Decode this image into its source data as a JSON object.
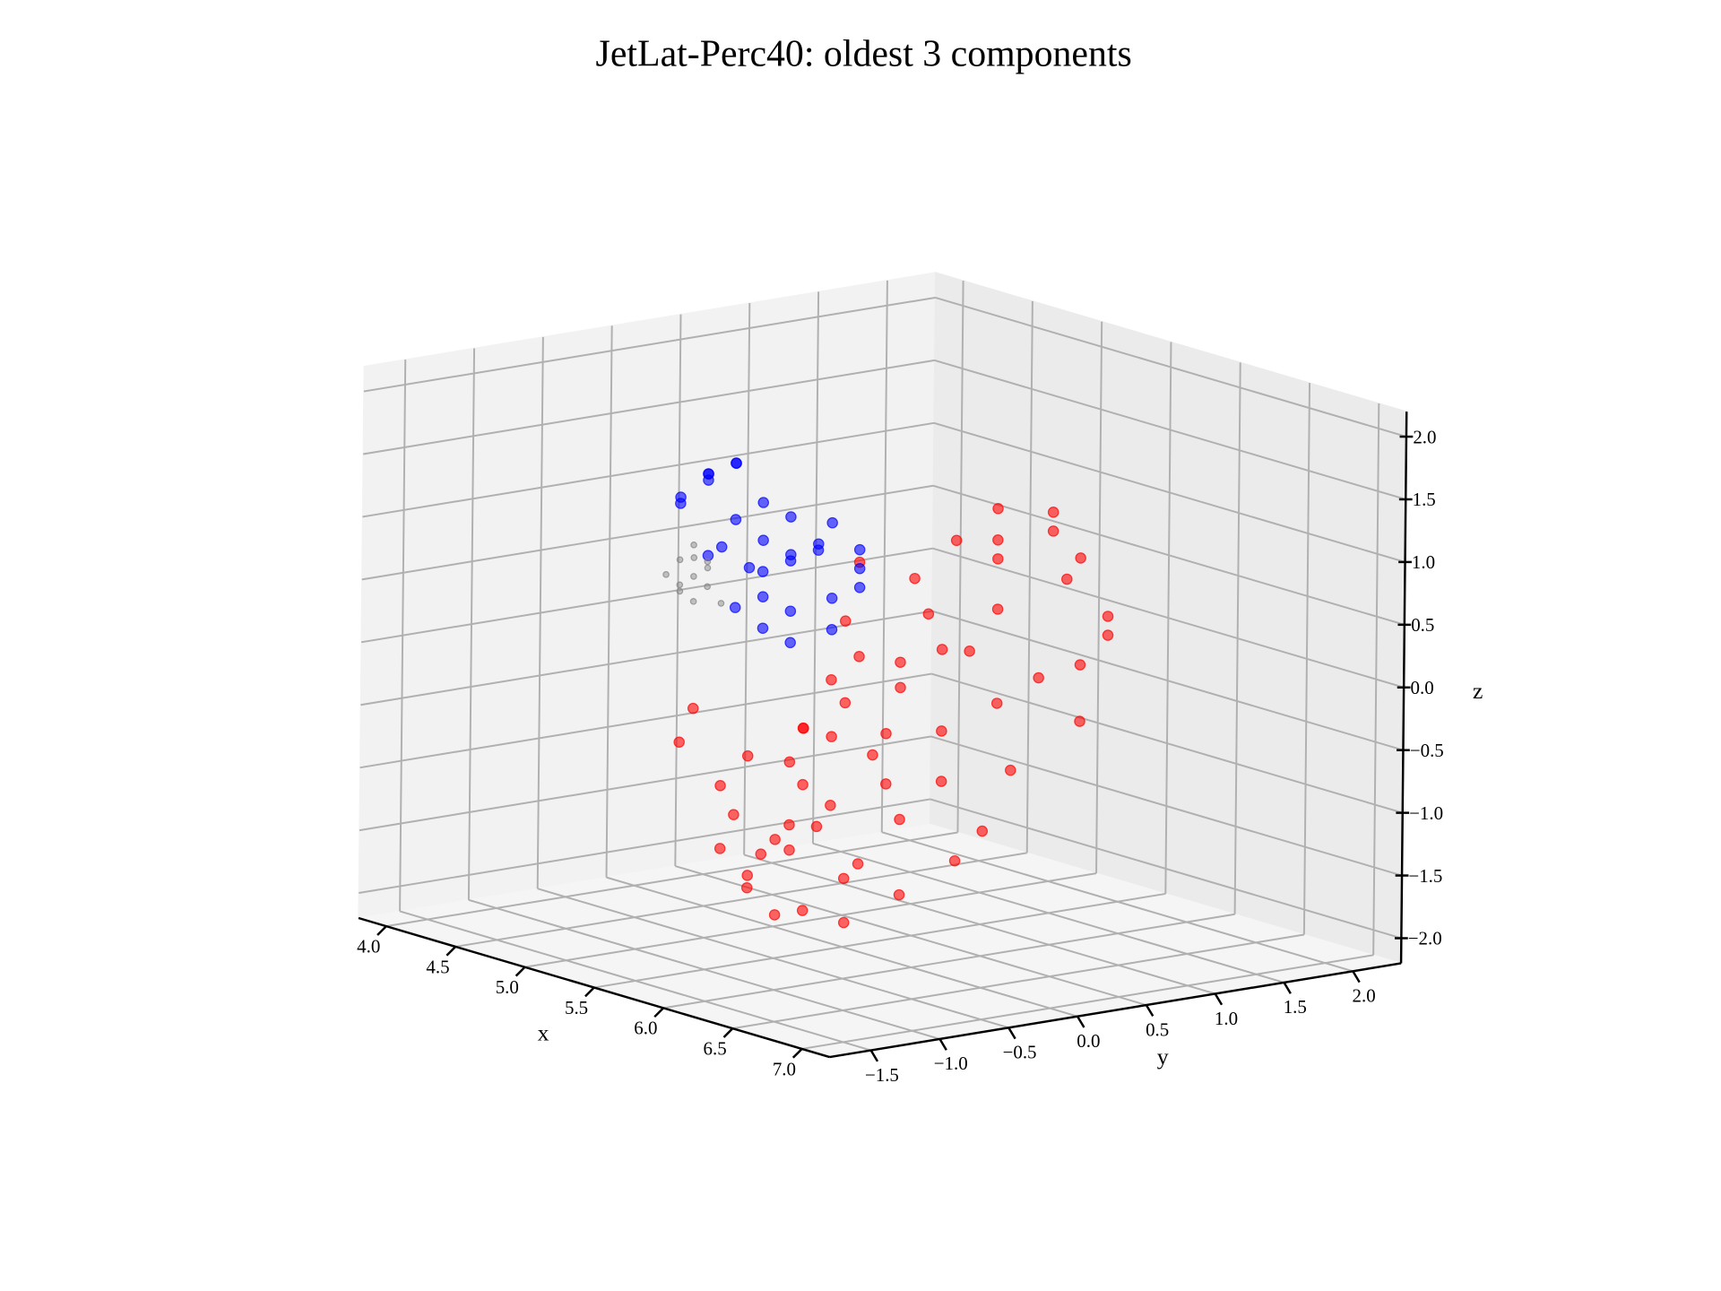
{
  "chart_data": {
    "type": "scatter3d",
    "title": "JetLat-Perc40: oldest 3 components",
    "x_label": "x",
    "y_label": "y",
    "z_label": "z",
    "xlim": [
      3.8,
      7.2
    ],
    "ylim": [
      -1.8,
      2.35
    ],
    "zlim": [
      -2.2,
      2.2
    ],
    "xticks": [
      {
        "value": 4,
        "label": "4.0"
      },
      {
        "value": 4.5,
        "label": "4.5"
      },
      {
        "value": 5,
        "label": "5.0"
      },
      {
        "value": 5.5,
        "label": "5.5"
      },
      {
        "value": 6,
        "label": "6.0"
      },
      {
        "value": 6.5,
        "label": "6.5"
      },
      {
        "value": 7,
        "label": "7.0"
      }
    ],
    "yticks": [
      {
        "value": -1.5,
        "label": "−1.5"
      },
      {
        "value": -1,
        "label": "−1.0"
      },
      {
        "value": -0.5,
        "label": "−0.5"
      },
      {
        "value": 0,
        "label": "0.0"
      },
      {
        "value": 0.5,
        "label": "0.5"
      },
      {
        "value": 1,
        "label": "1.0"
      },
      {
        "value": 1.5,
        "label": "1.5"
      },
      {
        "value": 2,
        "label": "2.0"
      }
    ],
    "zticks": [
      {
        "value": -2,
        "label": "−2.0"
      },
      {
        "value": -1.5,
        "label": "−1.5"
      },
      {
        "value": -1,
        "label": "−1.0"
      },
      {
        "value": -0.5,
        "label": "−0.5"
      },
      {
        "value": 0,
        "label": "0.0"
      },
      {
        "value": 0.5,
        "label": "0.5"
      },
      {
        "value": 1,
        "label": "1.0"
      },
      {
        "value": 1.5,
        "label": "1.5"
      },
      {
        "value": 2,
        "label": "2.0"
      }
    ],
    "grid": true,
    "series": [
      {
        "color": "#ff0000",
        "x": [
          6.0,
          6.2,
          5.8,
          6.4,
          5.9,
          6.1,
          6.5,
          5.7,
          6.3,
          6.0,
          5.6,
          6.6,
          6.2,
          5.9,
          6.4,
          6.1,
          5.8,
          6.4,
          5.5,
          6.0,
          6.3,
          5.9,
          6.1,
          6.2,
          6.0,
          5.8,
          6.3,
          6.1,
          6.0,
          6.4,
          6.2,
          6.5,
          6.6,
          6.3,
          5.7,
          5.6,
          5.9,
          6.4,
          6.5,
          6.7,
          6.8,
          6.6,
          5.8,
          6.2,
          6.0,
          5.7,
          6.1,
          6.0,
          6.3,
          6.1,
          5.9,
          6.5,
          6.2,
          5.6,
          6.4,
          6.0,
          5.8,
          6.6,
          6.7,
          5.9
        ],
        "y": [
          -0.9,
          -1.1,
          -1.2,
          -0.8,
          -0.7,
          -1.3,
          -1.0,
          -1.0,
          -0.6,
          -0.5,
          -1.3,
          -0.7,
          -0.4,
          -1.1,
          -1.2,
          -0.8,
          -0.6,
          -1.3,
          -1.1,
          -1.0,
          -0.9,
          -0.3,
          -0.2,
          0.0,
          0.1,
          0.2,
          0.3,
          0.5,
          0.6,
          0.7,
          0.8,
          0.4,
          0.6,
          -0.1,
          -0.2,
          0.0,
          0.4,
          0.2,
          -0.3,
          0.0,
          -0.5,
          -0.1,
          -0.9,
          -1.2,
          -1.4,
          -0.5,
          0.3,
          -0.6,
          0.9,
          0.9,
          0.7,
          0.9,
          -0.7,
          -0.8,
          -0.5,
          -0.2,
          -0.4,
          0.8,
          0.5,
          0.0
        ],
        "z": [
          -0.4,
          -0.8,
          -0.6,
          -1.1,
          -0.2,
          -1.2,
          -1.5,
          -0.9,
          -0.3,
          0.0,
          -0.3,
          -1.3,
          -0.6,
          -1.4,
          -1.4,
          -0.9,
          -0.7,
          -0.9,
          -0.1,
          -1.0,
          -0.1,
          0.3,
          0.1,
          0.4,
          0.6,
          0.8,
          0.7,
          1.0,
          1.1,
          0.9,
          1.2,
          0.2,
          0.3,
          -0.2,
          0.5,
          0.9,
          1.1,
          0.0,
          -0.5,
          -0.4,
          -1.0,
          -0.9,
          -1.2,
          -1.5,
          -1.0,
          -0.3,
          0.3,
          -0.8,
          1.0,
          1.3,
          1.3,
          0.6,
          -1.3,
          -0.5,
          -0.8,
          -0.3,
          0.1,
          0.5,
          -0.1,
          0.2
        ]
      },
      {
        "color": "#0000ff",
        "x": [
          5.2,
          5.1,
          5.0,
          5.2,
          5.3,
          5.1,
          5.4,
          5.5,
          5.6,
          5.5,
          5.7,
          5.6,
          5.4,
          5.3,
          5.5,
          5.6,
          5.4,
          5.7,
          5.8,
          5.3,
          5.2,
          5.0,
          5.1,
          5.4,
          5.6,
          5.7,
          5.5,
          5.3,
          5.2,
          5.8
        ],
        "y": [
          -0.7,
          -0.6,
          -0.7,
          -0.5,
          -0.6,
          -0.8,
          -0.5,
          -0.4,
          -0.3,
          -0.2,
          -0.1,
          0.0,
          -0.3,
          -0.4,
          -0.6,
          -0.5,
          -0.7,
          -0.3,
          -0.2,
          -0.2,
          -0.3,
          -0.5,
          -0.4,
          -0.6,
          -0.7,
          -0.6,
          -0.1,
          -0.8,
          -0.6,
          -0.4
        ],
        "z": [
          1.6,
          1.5,
          1.3,
          1.2,
          1.7,
          1.4,
          1.1,
          1.0,
          1.1,
          1.0,
          0.9,
          1.0,
          0.9,
          0.8,
          0.7,
          0.6,
          0.6,
          0.7,
          0.8,
          1.2,
          1.3,
          1.5,
          1.6,
          0.9,
          0.5,
          0.4,
          1.2,
          1.0,
          1.0,
          0.5
        ]
      },
      {
        "color": "#808080",
        "x": [
          5.0,
          4.9,
          5.0,
          5.1,
          4.9,
          5.0,
          5.1,
          4.9,
          5.0,
          5.1,
          5.0,
          4.9
        ],
        "y": [
          -0.6,
          -0.6,
          -0.7,
          -0.5,
          -0.5,
          -0.5,
          -0.6,
          -0.7,
          -0.6,
          -0.7,
          -0.5,
          -0.6
        ],
        "z": [
          0.7,
          0.8,
          0.6,
          0.5,
          0.9,
          0.6,
          0.8,
          0.7,
          0.5,
          0.9,
          0.8,
          0.6
        ]
      }
    ]
  }
}
